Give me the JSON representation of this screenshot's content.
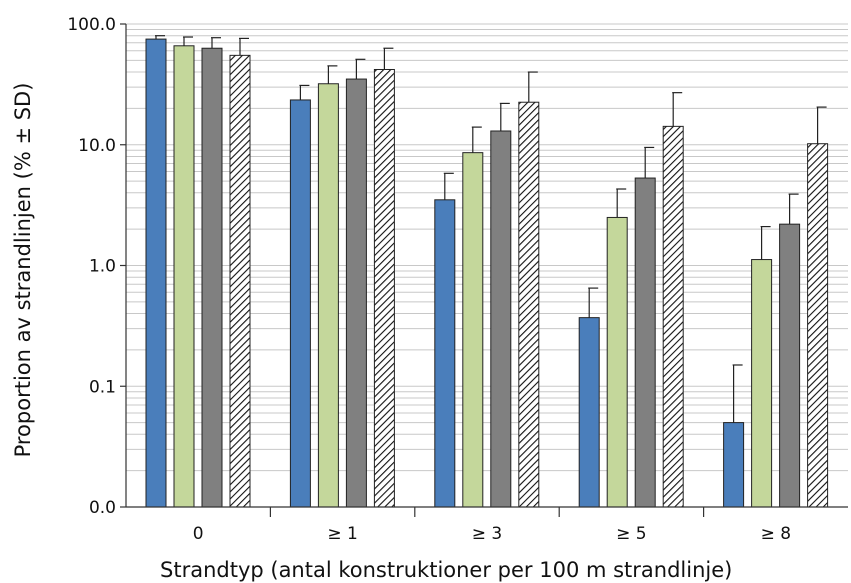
{
  "chart_data": {
    "type": "bar",
    "title": "",
    "xlabel": "Strandtyp (antal konstruktioner per 100 m strandlinje)",
    "ylabel": "Proportion av strandlinjen (% ± SD)",
    "y_scale": "log",
    "ylim": [
      0.01,
      100
    ],
    "y_ticks": [
      0.01,
      0.1,
      1,
      10,
      100
    ],
    "y_tick_labels": [
      "0.0",
      "0.1",
      "1.0",
      "10.0",
      "100.0"
    ],
    "grid": "horizontal minor gridlines",
    "categories": [
      "0",
      "≥ 1",
      "≥ 3",
      "≥ 5",
      "≥ 8"
    ],
    "series": [
      {
        "color": "#4a7ebb",
        "pattern": "solid",
        "values": [
          75,
          23.5,
          3.5,
          0.37,
          0.05
        ],
        "sd_upper": [
          80,
          31,
          5.8,
          0.65,
          0.15
        ]
      },
      {
        "color": "#c4d79b",
        "pattern": "solid",
        "values": [
          66,
          32,
          8.6,
          2.5,
          1.12
        ],
        "sd_upper": [
          78,
          45,
          14,
          4.3,
          2.1
        ]
      },
      {
        "color": "#808080",
        "pattern": "solid",
        "values": [
          63,
          35,
          13,
          5.3,
          2.2
        ],
        "sd_upper": [
          77,
          51,
          22,
          9.5,
          3.9
        ]
      },
      {
        "color": "#ffffff",
        "pattern": "diagonal-hatch",
        "values": [
          55,
          42,
          22.5,
          14.2,
          10.2
        ],
        "sd_upper": [
          76,
          63,
          40,
          27,
          20.5
        ]
      }
    ]
  }
}
